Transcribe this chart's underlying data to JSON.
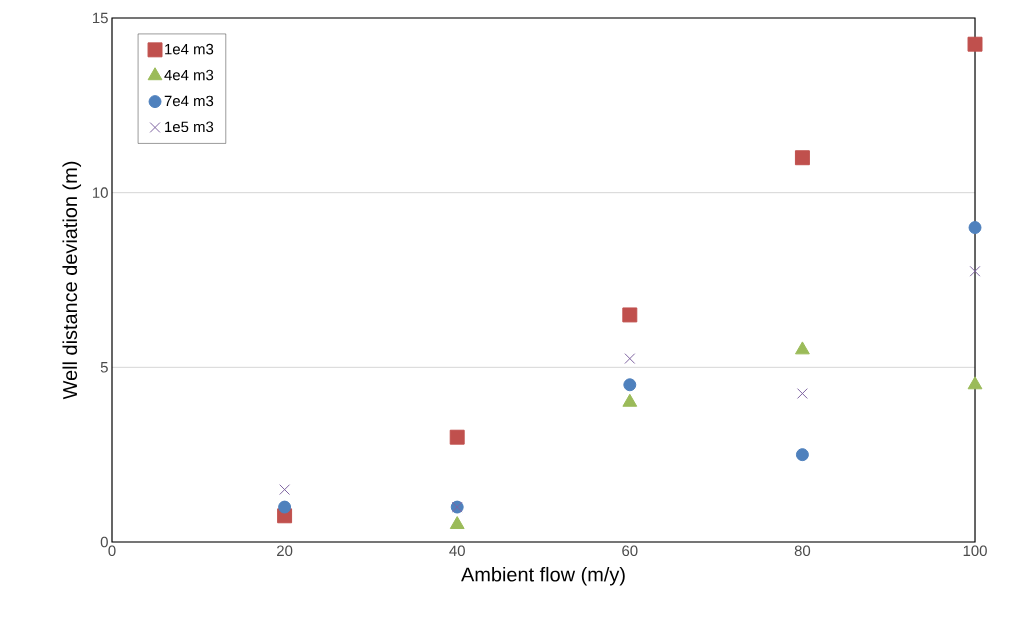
{
  "chart_data": {
    "type": "scatter",
    "xlabel": "Ambient flow (m/y)",
    "ylabel": "Well distance deviation (m)",
    "x": [
      20,
      40,
      60,
      80,
      100
    ],
    "series": [
      {
        "name": "1e4 m3",
        "color": "#c0504d",
        "marker": "square",
        "values": [
          0.75,
          3.0,
          6.5,
          11.0,
          14.25
        ]
      },
      {
        "name": "4e4 m3",
        "color": "#9bbb59",
        "marker": "triangle",
        "values": [
          null,
          0.5,
          4.0,
          5.5,
          4.5
        ]
      },
      {
        "name": "7e4 m3",
        "color": "#4f81bd",
        "marker": "circle",
        "values": [
          1.0,
          1.0,
          4.5,
          2.5,
          9.0
        ]
      },
      {
        "name": "1e5 m3",
        "color": "#8064a2",
        "marker": "cross",
        "values": [
          1.5,
          1.0,
          5.25,
          4.25,
          7.75
        ]
      }
    ],
    "xlim": [
      0,
      100
    ],
    "ylim": [
      0,
      15
    ],
    "xticks": [
      0,
      20,
      40,
      60,
      80,
      100
    ],
    "yticks": [
      0,
      5,
      10,
      15
    ],
    "grid": "y",
    "legend": "top left"
  }
}
